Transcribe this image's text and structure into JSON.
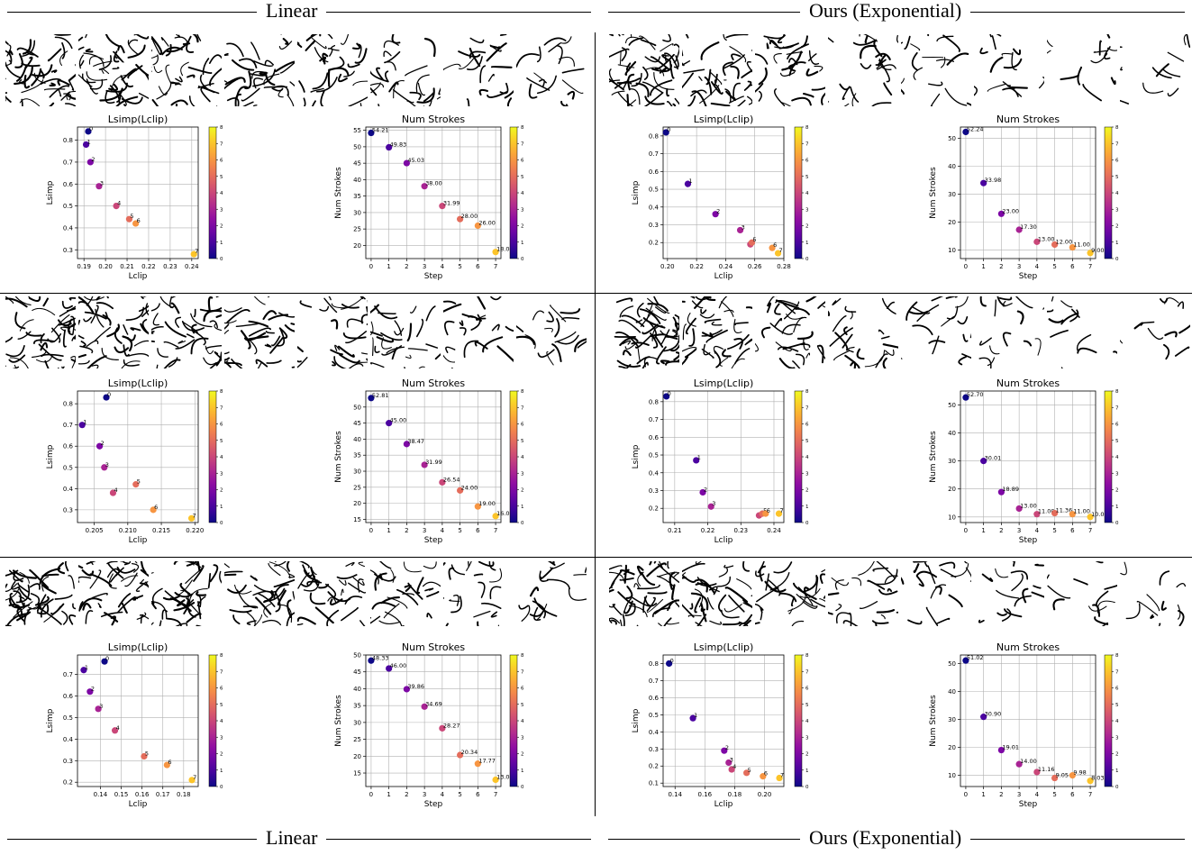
{
  "headers": {
    "top": {
      "left": "Linear",
      "right": "Ours (Exponential)"
    },
    "bottom": {
      "left": "Linear",
      "right": "Ours (Exponential)"
    }
  },
  "colorbar": {
    "ticks": [
      "0",
      "1",
      "2",
      "3",
      "4",
      "5",
      "6",
      "7",
      "8"
    ]
  },
  "chart_data": [
    {
      "id": "r1-lin-loss",
      "type": "scatter",
      "title": "Lsimp(Lclip)",
      "xlabel": "Lclip",
      "ylabel": "Lsimp",
      "xticks": [
        "0.19",
        "0.20",
        "0.21",
        "0.22",
        "0.23",
        "0.24"
      ],
      "yticks": [
        "0.3",
        "0.4",
        "0.5",
        "0.6",
        "0.7",
        "0.8"
      ],
      "xlim": [
        0.187,
        0.243
      ],
      "ylim": [
        0.26,
        0.86
      ],
      "points": [
        [
          0.192,
          0.84
        ],
        [
          0.191,
          0.78
        ],
        [
          0.193,
          0.7
        ],
        [
          0.197,
          0.59
        ],
        [
          0.205,
          0.5
        ],
        [
          0.211,
          0.44
        ],
        [
          0.214,
          0.42
        ],
        [
          0.241,
          0.28
        ]
      ],
      "point_labels": [
        "0",
        "1",
        "2",
        "3",
        "4",
        "5",
        "6",
        "7"
      ]
    },
    {
      "id": "r1-lin-strokes",
      "type": "scatter",
      "title": "Num Strokes",
      "xlabel": "Step",
      "ylabel": "Num Strokes",
      "xticks": [
        "0",
        "1",
        "2",
        "3",
        "4",
        "5",
        "6",
        "7"
      ],
      "yticks": [
        "20",
        "25",
        "30",
        "35",
        "40",
        "45",
        "50",
        "55"
      ],
      "xlim": [
        -0.3,
        7.3
      ],
      "ylim": [
        16,
        56
      ],
      "points": [
        [
          0,
          54.21
        ],
        [
          1,
          49.83
        ],
        [
          2,
          45.03
        ],
        [
          3,
          38.0
        ],
        [
          4,
          31.99
        ],
        [
          5,
          28.0
        ],
        [
          6,
          26.0
        ],
        [
          7,
          18.0
        ]
      ],
      "point_labels": [
        "54.21",
        "49.83",
        "45.03",
        "38.00",
        "31.99",
        "28.00",
        "26.00",
        "18.00"
      ]
    },
    {
      "id": "r1-exp-loss",
      "type": "scatter",
      "title": "Lsimp(Lclip)",
      "xlabel": "Lclip",
      "ylabel": "Lsimp",
      "xticks": [
        "0.20",
        "0.22",
        "0.24",
        "0.26",
        "0.28"
      ],
      "yticks": [
        "0.2",
        "0.3",
        "0.4",
        "0.5",
        "0.6",
        "0.7",
        "0.8"
      ],
      "xlim": [
        0.197,
        0.28
      ],
      "ylim": [
        0.11,
        0.85
      ],
      "points": [
        [
          0.199,
          0.82
        ],
        [
          0.214,
          0.53
        ],
        [
          0.233,
          0.36
        ],
        [
          0.25,
          0.27
        ],
        [
          0.257,
          0.19
        ],
        [
          0.258,
          0.2
        ],
        [
          0.272,
          0.17
        ],
        [
          0.276,
          0.14
        ]
      ],
      "point_labels": [
        "0",
        "1",
        "2",
        "3",
        "4",
        "5",
        "6",
        "7"
      ]
    },
    {
      "id": "r1-exp-strokes",
      "type": "scatter",
      "title": "Num Strokes",
      "xlabel": "Step",
      "ylabel": "Num Strokes",
      "xticks": [
        "0",
        "1",
        "2",
        "3",
        "4",
        "5",
        "6",
        "7"
      ],
      "yticks": [
        "10",
        "20",
        "30",
        "40",
        "50"
      ],
      "xlim": [
        -0.3,
        7.3
      ],
      "ylim": [
        7,
        54
      ],
      "points": [
        [
          0,
          52.24
        ],
        [
          1,
          33.98
        ],
        [
          2,
          23.0
        ],
        [
          3,
          17.3
        ],
        [
          4,
          13.0
        ],
        [
          5,
          12.0
        ],
        [
          6,
          11.0
        ],
        [
          7,
          9.0
        ]
      ],
      "point_labels": [
        "52.24",
        "33.98",
        "23.00",
        "17.30",
        "13.00",
        "12.00",
        "11.00",
        "9.00"
      ]
    },
    {
      "id": "r2-lin-loss",
      "type": "scatter",
      "title": "Lsimp(Lclip)",
      "xlabel": "Lclip",
      "ylabel": "Lsimp",
      "xticks": [
        "0.205",
        "0.210",
        "0.215",
        "0.220"
      ],
      "yticks": [
        "0.3",
        "0.4",
        "0.5",
        "0.6",
        "0.7",
        "0.8"
      ],
      "xlim": [
        0.2025,
        0.2205
      ],
      "ylim": [
        0.24,
        0.86
      ],
      "points": [
        [
          0.2068,
          0.83
        ],
        [
          0.2032,
          0.7
        ],
        [
          0.2058,
          0.6
        ],
        [
          0.2065,
          0.5
        ],
        [
          0.2078,
          0.38
        ],
        [
          0.2112,
          0.42
        ],
        [
          0.2138,
          0.3
        ],
        [
          0.2195,
          0.26
        ]
      ],
      "point_labels": [
        "0",
        "1",
        "2",
        "3",
        "4",
        "5",
        "6",
        "7"
      ]
    },
    {
      "id": "r2-lin-strokes",
      "type": "scatter",
      "title": "Num Strokes",
      "xlabel": "Step",
      "ylabel": "Num Strokes",
      "xticks": [
        "0",
        "1",
        "2",
        "3",
        "4",
        "5",
        "6",
        "7"
      ],
      "yticks": [
        "15",
        "20",
        "25",
        "30",
        "35",
        "40",
        "45",
        "50"
      ],
      "xlim": [
        -0.3,
        7.3
      ],
      "ylim": [
        14,
        55
      ],
      "points": [
        [
          0,
          52.81
        ],
        [
          1,
          45.0
        ],
        [
          2,
          38.47
        ],
        [
          3,
          31.99
        ],
        [
          4,
          26.54
        ],
        [
          5,
          24.0
        ],
        [
          6,
          19.0
        ],
        [
          7,
          16.0
        ]
      ],
      "point_labels": [
        "52.81",
        "45.00",
        "38.47",
        "31.99",
        "26.54",
        "24.00",
        "19.00",
        "16.00"
      ]
    },
    {
      "id": "r2-exp-loss",
      "type": "scatter",
      "title": "Lsimp(Lclip)",
      "xlabel": "Lclip",
      "ylabel": "Lsimp",
      "xticks": [
        "0.21",
        "0.22",
        "0.23",
        "0.24"
      ],
      "yticks": [
        "0.2",
        "0.3",
        "0.4",
        "0.5",
        "0.6",
        "0.7",
        "0.8"
      ],
      "xlim": [
        0.2065,
        0.243
      ],
      "ylim": [
        0.12,
        0.86
      ],
      "points": [
        [
          0.2075,
          0.83
        ],
        [
          0.2165,
          0.47
        ],
        [
          0.2185,
          0.29
        ],
        [
          0.221,
          0.21
        ],
        [
          0.2355,
          0.16
        ],
        [
          0.2365,
          0.17
        ],
        [
          0.2375,
          0.17
        ],
        [
          0.2415,
          0.17
        ]
      ],
      "point_labels": [
        "0",
        "1",
        "2",
        "3",
        "4",
        "5",
        "6",
        "7"
      ]
    },
    {
      "id": "r2-exp-strokes",
      "type": "scatter",
      "title": "Num Strokes",
      "xlabel": "Step",
      "ylabel": "Num Strokes",
      "xticks": [
        "0",
        "1",
        "2",
        "3",
        "4",
        "5",
        "6",
        "7"
      ],
      "yticks": [
        "10",
        "20",
        "30",
        "40",
        "50"
      ],
      "xlim": [
        -0.3,
        7.3
      ],
      "ylim": [
        8,
        55
      ],
      "points": [
        [
          0,
          52.7
        ],
        [
          1,
          30.01
        ],
        [
          2,
          18.89
        ],
        [
          3,
          13.0
        ],
        [
          4,
          11.0
        ],
        [
          5,
          11.36
        ],
        [
          6,
          11.0
        ],
        [
          7,
          10.0
        ]
      ],
      "point_labels": [
        "52.70",
        "30.01",
        "18.89",
        "13.00",
        "11.00",
        "11.36",
        "11.00",
        "10.00"
      ]
    },
    {
      "id": "r3-lin-loss",
      "type": "scatter",
      "title": "Lsimp(Lclip)",
      "xlabel": "Lclip",
      "ylabel": "Lsimp",
      "xticks": [
        "0.14",
        "0.15",
        "0.16",
        "0.17",
        "0.18"
      ],
      "yticks": [
        "0.2",
        "0.3",
        "0.4",
        "0.5",
        "0.6",
        "0.7"
      ],
      "xlim": [
        0.129,
        0.187
      ],
      "ylim": [
        0.18,
        0.79
      ],
      "points": [
        [
          0.142,
          0.76
        ],
        [
          0.132,
          0.72
        ],
        [
          0.135,
          0.62
        ],
        [
          0.139,
          0.54
        ],
        [
          0.147,
          0.44
        ],
        [
          0.161,
          0.32
        ],
        [
          0.172,
          0.28
        ],
        [
          0.184,
          0.21
        ]
      ],
      "point_labels": [
        "0",
        "1",
        "2",
        "3",
        "4",
        "5",
        "6",
        "7"
      ]
    },
    {
      "id": "r3-lin-strokes",
      "type": "scatter",
      "title": "Num Strokes",
      "xlabel": "Step",
      "ylabel": "Num Strokes",
      "xticks": [
        "0",
        "1",
        "2",
        "3",
        "4",
        "5",
        "6",
        "7"
      ],
      "yticks": [
        "15",
        "20",
        "25",
        "30",
        "35",
        "40",
        "45",
        "50"
      ],
      "xlim": [
        -0.3,
        7.3
      ],
      "ylim": [
        11,
        50
      ],
      "points": [
        [
          0,
          48.33
        ],
        [
          1,
          46.0
        ],
        [
          2,
          39.86
        ],
        [
          3,
          34.69
        ],
        [
          4,
          28.27
        ],
        [
          5,
          20.34
        ],
        [
          6,
          17.77
        ],
        [
          7,
          13.0
        ]
      ],
      "point_labels": [
        "48.33",
        "46.00",
        "39.86",
        "34.69",
        "28.27",
        "20.34",
        "17.77",
        "13.00"
      ]
    },
    {
      "id": "r3-exp-loss",
      "type": "scatter",
      "title": "Lsimp(Lclip)",
      "xlabel": "Lclip",
      "ylabel": "Lsimp",
      "xticks": [
        "0.14",
        "0.16",
        "0.18",
        "0.20"
      ],
      "yticks": [
        "0.1",
        "0.2",
        "0.3",
        "0.4",
        "0.5",
        "0.6",
        "0.7",
        "0.8"
      ],
      "xlim": [
        0.132,
        0.213
      ],
      "ylim": [
        0.08,
        0.85
      ],
      "points": [
        [
          0.136,
          0.8
        ],
        [
          0.152,
          0.48
        ],
        [
          0.173,
          0.29
        ],
        [
          0.176,
          0.22
        ],
        [
          0.178,
          0.18
        ],
        [
          0.188,
          0.16
        ],
        [
          0.199,
          0.14
        ],
        [
          0.21,
          0.13
        ]
      ],
      "point_labels": [
        "0",
        "1",
        "2",
        "3",
        "4",
        "5",
        "6",
        "7"
      ]
    },
    {
      "id": "r3-exp-strokes",
      "type": "scatter",
      "title": "Num Strokes",
      "xlabel": "Step",
      "ylabel": "Num Strokes",
      "xticks": [
        "0",
        "1",
        "2",
        "3",
        "4",
        "5",
        "6",
        "7"
      ],
      "yticks": [
        "10",
        "20",
        "30",
        "40",
        "50"
      ],
      "xlim": [
        -0.3,
        7.3
      ],
      "ylim": [
        6,
        53
      ],
      "points": [
        [
          0,
          51.02
        ],
        [
          1,
          30.9
        ],
        [
          2,
          19.01
        ],
        [
          3,
          14.0
        ],
        [
          4,
          11.16
        ],
        [
          5,
          9.05
        ],
        [
          6,
          9.98
        ],
        [
          7,
          8.03
        ]
      ],
      "point_labels": [
        "51.02",
        "30.90",
        "19.01",
        "14.00",
        "11.16",
        "9.05",
        "9.98",
        "8.03"
      ]
    }
  ]
}
